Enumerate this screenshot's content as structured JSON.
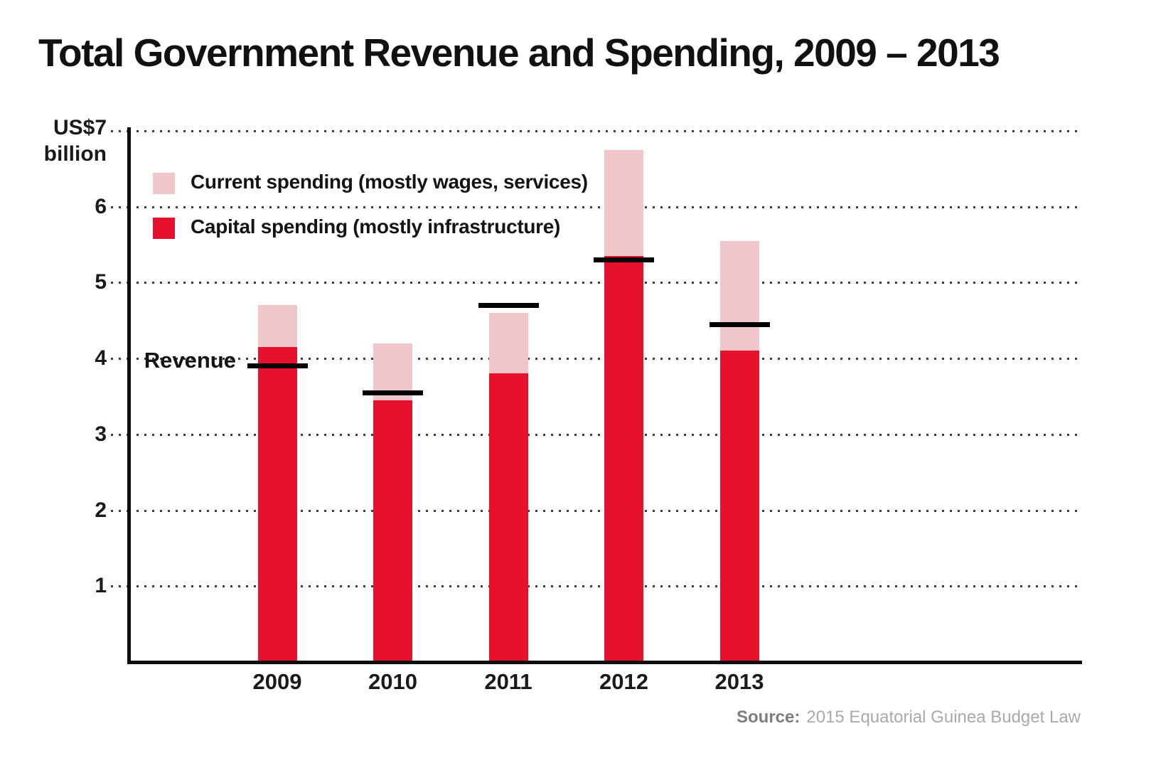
{
  "title": "Total Government Revenue and Spending, 2009 – 2013",
  "y_axis": {
    "unit_top": "US$7",
    "unit_bottom": "billion",
    "ticks": [
      "6",
      "5",
      "4",
      "3",
      "2",
      "1"
    ]
  },
  "legend": {
    "items": [
      {
        "label": "Current spending (mostly wages, services)",
        "color_key": "current"
      },
      {
        "label": "Capital spending (mostly infrastructure)",
        "color_key": "capital"
      }
    ]
  },
  "colors": {
    "capital": "#e8112d",
    "current": "#f0c6cb",
    "revenue_line": "#000000"
  },
  "source": {
    "prefix": "Source:",
    "text": "2015 Equatorial Guinea Budget Law"
  },
  "chart_data": {
    "type": "bar",
    "subtype": "stacked-bars-with-target-line",
    "title": "Total Government Revenue and Spending, 2009 – 2013",
    "ylabel": "US$7 billion",
    "xlabel": "",
    "ylim": [
      0,
      7
    ],
    "gridlines": [
      1,
      2,
      3,
      4,
      5,
      6,
      7
    ],
    "grid": "dotted-horizontal",
    "legend_position": "top-left-inside",
    "categories": [
      "2009",
      "2010",
      "2011",
      "2012",
      "2013"
    ],
    "series": [
      {
        "name": "Capital spending (mostly infrastructure)",
        "values": [
          4.15,
          3.45,
          3.8,
          5.35,
          4.1
        ]
      },
      {
        "name": "Current spending (mostly wages, services)",
        "values": [
          0.55,
          0.75,
          0.8,
          1.4,
          1.45
        ]
      }
    ],
    "totals": [
      4.7,
      4.2,
      4.6,
      6.75,
      5.55
    ],
    "revenue_line": {
      "name": "Revenue",
      "values": [
        3.9,
        3.55,
        4.7,
        5.3,
        4.45
      ]
    }
  }
}
